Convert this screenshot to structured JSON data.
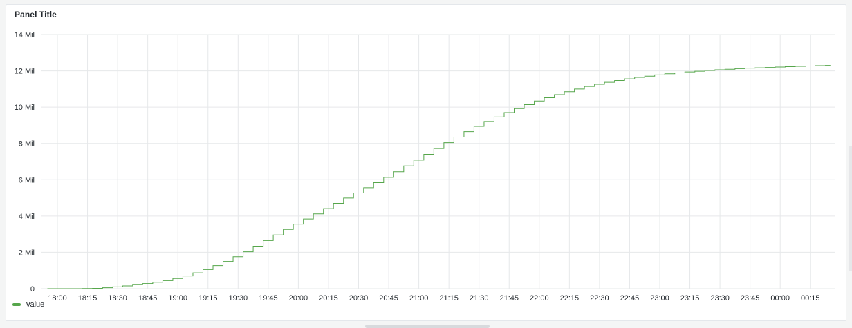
{
  "panel": {
    "title": "Panel Title"
  },
  "legend": {
    "label": "value"
  },
  "colors": {
    "series": "#56a64b",
    "grid": "#e6e8ea",
    "text": "#24292e"
  },
  "chart_data": {
    "type": "line",
    "title": "Panel Title",
    "xlabel": "",
    "ylabel": "",
    "x_tick_labels": [
      "18:00",
      "18:15",
      "18:30",
      "18:45",
      "19:00",
      "19:15",
      "19:30",
      "19:45",
      "20:00",
      "20:15",
      "20:30",
      "20:45",
      "21:00",
      "21:15",
      "21:30",
      "21:45",
      "22:00",
      "22:15",
      "22:30",
      "22:45",
      "23:00",
      "23:15",
      "23:30",
      "23:45",
      "00:00",
      "00:15"
    ],
    "y_tick_labels": [
      "0",
      "2 Mil",
      "4 Mil",
      "6 Mil",
      "8 Mil",
      "10 Mil",
      "12 Mil",
      "14 Mil"
    ],
    "ylim": [
      0,
      14000000
    ],
    "grid": true,
    "legend_position": "bottom-left",
    "series": [
      {
        "name": "value",
        "x": [
          "17:55",
          "18:00",
          "18:10",
          "18:15",
          "18:20",
          "18:25",
          "18:30",
          "18:35",
          "18:40",
          "18:45",
          "18:50",
          "18:55",
          "19:00",
          "19:05",
          "19:10",
          "19:15",
          "19:20",
          "19:25",
          "19:30",
          "19:35",
          "19:40",
          "19:45",
          "19:50",
          "19:55",
          "20:00",
          "20:05",
          "20:10",
          "20:15",
          "20:20",
          "20:25",
          "20:30",
          "20:35",
          "20:40",
          "20:45",
          "20:50",
          "20:55",
          "21:00",
          "21:05",
          "21:10",
          "21:15",
          "21:20",
          "21:25",
          "21:30",
          "21:35",
          "21:40",
          "21:45",
          "21:50",
          "21:55",
          "22:00",
          "22:05",
          "22:10",
          "22:15",
          "22:20",
          "22:25",
          "22:30",
          "22:35",
          "22:40",
          "22:45",
          "22:50",
          "22:55",
          "23:00",
          "23:05",
          "23:10",
          "23:15",
          "23:20",
          "23:25",
          "23:30",
          "23:35",
          "23:40",
          "23:45",
          "23:50",
          "23:55",
          "00:00",
          "00:05",
          "00:10",
          "00:15",
          "00:20",
          "00:25"
        ],
        "y": [
          0,
          0,
          0,
          10000,
          20000,
          50000,
          100000,
          150000,
          220000,
          280000,
          350000,
          440000,
          560000,
          700000,
          870000,
          1050000,
          1270000,
          1500000,
          1760000,
          2030000,
          2340000,
          2650000,
          2960000,
          3260000,
          3550000,
          3840000,
          4120000,
          4410000,
          4700000,
          4990000,
          5270000,
          5560000,
          5840000,
          6130000,
          6440000,
          6760000,
          7080000,
          7400000,
          7720000,
          8040000,
          8350000,
          8650000,
          8940000,
          9210000,
          9460000,
          9700000,
          9920000,
          10140000,
          10340000,
          10520000,
          10690000,
          10850000,
          11000000,
          11140000,
          11260000,
          11370000,
          11470000,
          11560000,
          11640000,
          11710000,
          11780000,
          11840000,
          11890000,
          11940000,
          11980000,
          12020000,
          12060000,
          12090000,
          12120000,
          12150000,
          12170000,
          12190000,
          12210000,
          12230000,
          12250000,
          12270000,
          12290000,
          12300000
        ]
      }
    ]
  }
}
